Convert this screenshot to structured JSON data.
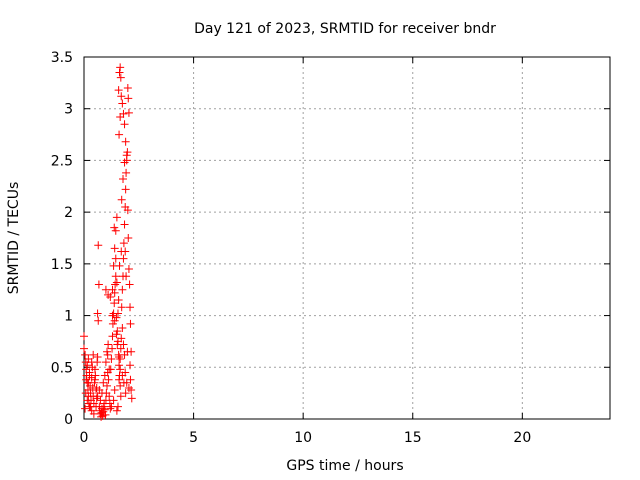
{
  "chart_data": {
    "type": "scatter",
    "title": "Day 121 of 2023, SRMTID for receiver bndr",
    "xlabel": "GPS time / hours",
    "ylabel": "SRMTID / TECUs",
    "xlim": [
      0,
      24
    ],
    "ylim": [
      0,
      3.5
    ],
    "xticks": [
      0,
      5,
      10,
      15,
      20
    ],
    "xtick_labels": [
      "0",
      "5",
      "10",
      "15",
      "20"
    ],
    "yticks": [
      0,
      0.5,
      1,
      1.5,
      2,
      2.5,
      3,
      3.5
    ],
    "ytick_labels": [
      "0",
      "0.5",
      "1",
      "1.5",
      "2",
      "2.5",
      "3",
      "3.5"
    ],
    "grid": true,
    "marker": "+",
    "series": [
      {
        "name": "SRMTID",
        "color": "#ff0000",
        "points": [
          [
            0.0,
            0.8
          ],
          [
            0.0,
            0.68
          ],
          [
            0.05,
            0.62
          ],
          [
            0.08,
            0.55
          ],
          [
            0.1,
            0.48
          ],
          [
            0.12,
            0.42
          ],
          [
            0.15,
            0.35
          ],
          [
            0.18,
            0.28
          ],
          [
            0.2,
            0.22
          ],
          [
            0.22,
            0.15
          ],
          [
            0.25,
            0.12
          ],
          [
            0.05,
            0.1
          ],
          [
            0.1,
            0.38
          ],
          [
            0.15,
            0.52
          ],
          [
            0.2,
            0.58
          ],
          [
            0.25,
            0.45
          ],
          [
            0.28,
            0.32
          ],
          [
            0.3,
            0.25
          ],
          [
            0.32,
            0.18
          ],
          [
            0.35,
            0.4
          ],
          [
            0.38,
            0.5
          ],
          [
            0.4,
            0.3
          ],
          [
            0.42,
            0.22
          ],
          [
            0.45,
            0.15
          ],
          [
            0.48,
            0.35
          ],
          [
            0.5,
            0.48
          ],
          [
            0.52,
            0.42
          ],
          [
            0.55,
            0.28
          ],
          [
            0.58,
            0.2
          ],
          [
            0.6,
            0.55
          ],
          [
            0.62,
            0.6
          ],
          [
            0.65,
            0.95
          ],
          [
            0.62,
            1.02
          ],
          [
            0.68,
            1.3
          ],
          [
            0.65,
            1.68
          ],
          [
            0.7,
            0.12
          ],
          [
            0.72,
            0.08
          ],
          [
            0.75,
            0.05
          ],
          [
            0.78,
            0.02
          ],
          [
            0.8,
            0.06
          ],
          [
            0.82,
            0.1
          ],
          [
            0.85,
            0.03
          ],
          [
            0.88,
            0.07
          ],
          [
            0.9,
            0.12
          ],
          [
            0.92,
            0.15
          ],
          [
            0.95,
            0.09
          ],
          [
            0.98,
            0.04
          ],
          [
            1.0,
            0.18
          ],
          [
            1.02,
            0.25
          ],
          [
            1.05,
            0.32
          ],
          [
            1.08,
            0.45
          ],
          [
            1.0,
            0.55
          ],
          [
            1.05,
            0.65
          ],
          [
            1.1,
            0.72
          ],
          [
            1.12,
            0.38
          ],
          [
            1.15,
            0.22
          ],
          [
            1.18,
            0.15
          ],
          [
            1.2,
            0.1
          ],
          [
            1.22,
            0.48
          ],
          [
            1.25,
            0.58
          ],
          [
            1.28,
            0.68
          ],
          [
            1.3,
            0.8
          ],
          [
            1.32,
            0.92
          ],
          [
            1.35,
            1.02
          ],
          [
            1.38,
            1.12
          ],
          [
            1.4,
            1.22
          ],
          [
            1.42,
            1.3
          ],
          [
            1.45,
            1.38
          ],
          [
            1.3,
            1.25
          ],
          [
            1.35,
            1.48
          ],
          [
            1.4,
            1.65
          ],
          [
            1.45,
            1.82
          ],
          [
            1.38,
            1.85
          ],
          [
            1.5,
            1.95
          ],
          [
            1.48,
            0.98
          ],
          [
            1.52,
            0.85
          ],
          [
            1.55,
            0.75
          ],
          [
            1.58,
            0.62
          ],
          [
            1.6,
            0.52
          ],
          [
            1.62,
            0.42
          ],
          [
            1.65,
            0.32
          ],
          [
            1.68,
            0.22
          ],
          [
            1.5,
            0.08
          ],
          [
            1.55,
            0.12
          ],
          [
            1.6,
            0.38
          ],
          [
            1.65,
            0.58
          ],
          [
            1.68,
            0.68
          ],
          [
            1.7,
            0.78
          ],
          [
            1.72,
            1.08
          ],
          [
            1.75,
            1.25
          ],
          [
            1.78,
            1.38
          ],
          [
            1.8,
            1.55
          ],
          [
            1.82,
            1.7
          ],
          [
            1.85,
            1.88
          ],
          [
            1.88,
            2.05
          ],
          [
            1.9,
            2.22
          ],
          [
            1.92,
            2.38
          ],
          [
            1.95,
            2.55
          ],
          [
            1.6,
            2.75
          ],
          [
            1.65,
            2.92
          ],
          [
            1.7,
            3.12
          ],
          [
            1.62,
            3.35
          ],
          [
            1.65,
            3.4
          ],
          [
            1.68,
            3.3
          ],
          [
            1.58,
            3.18
          ],
          [
            1.75,
            3.05
          ],
          [
            1.8,
            2.95
          ],
          [
            1.85,
            2.85
          ],
          [
            1.9,
            2.68
          ],
          [
            1.95,
            2.5
          ],
          [
            2.0,
            3.2
          ],
          [
            2.02,
            3.1
          ],
          [
            2.05,
            2.96
          ],
          [
            1.98,
            2.58
          ],
          [
            2.0,
            2.02
          ],
          [
            2.02,
            1.75
          ],
          [
            2.05,
            1.45
          ],
          [
            2.08,
            1.3
          ],
          [
            2.1,
            1.08
          ],
          [
            2.12,
            0.92
          ],
          [
            2.15,
            0.65
          ],
          [
            2.1,
            0.52
          ],
          [
            2.12,
            0.38
          ],
          [
            2.15,
            0.28
          ],
          [
            2.18,
            0.2
          ],
          [
            1.9,
            0.25
          ],
          [
            1.95,
            0.35
          ],
          [
            1.88,
            0.45
          ],
          [
            1.85,
            0.62
          ],
          [
            1.8,
            0.72
          ],
          [
            1.55,
            1.02
          ],
          [
            1.58,
            1.15
          ],
          [
            1.45,
            1.55
          ],
          [
            1.72,
            2.12
          ],
          [
            1.78,
            2.32
          ],
          [
            1.85,
            2.48
          ],
          [
            1.7,
            1.62
          ],
          [
            1.92,
            1.38
          ],
          [
            1.75,
            0.88
          ],
          [
            1.4,
            0.28
          ],
          [
            1.35,
            0.18
          ],
          [
            1.25,
            0.12
          ],
          [
            1.15,
            0.48
          ],
          [
            1.08,
            0.62
          ],
          [
            0.95,
            0.42
          ],
          [
            0.88,
            0.35
          ],
          [
            0.82,
            0.25
          ],
          [
            0.75,
            0.18
          ],
          [
            0.7,
            0.28
          ],
          [
            0.55,
            0.12
          ],
          [
            0.45,
            0.05
          ],
          [
            0.35,
            0.08
          ],
          [
            0.3,
            0.12
          ],
          [
            0.15,
            0.18
          ],
          [
            0.08,
            0.25
          ],
          [
            0.2,
            0.35
          ],
          [
            0.25,
            0.42
          ],
          [
            0.35,
            0.55
          ],
          [
            0.42,
            0.62
          ],
          [
            0.5,
            0.38
          ],
          [
            0.58,
            0.3
          ],
          [
            0.62,
            0.22
          ],
          [
            1.0,
            1.25
          ],
          [
            1.1,
            1.2
          ],
          [
            1.2,
            1.18
          ],
          [
            1.3,
            1.0
          ],
          [
            1.4,
            0.95
          ],
          [
            1.48,
            0.82
          ],
          [
            1.52,
            0.72
          ],
          [
            1.6,
            0.6
          ],
          [
            1.65,
            0.48
          ],
          [
            1.75,
            0.42
          ],
          [
            1.82,
            0.35
          ],
          [
            1.98,
            0.65
          ],
          [
            2.05,
            0.3
          ],
          [
            1.5,
            1.32
          ],
          [
            1.62,
            1.48
          ],
          [
            1.88,
            1.62
          ]
        ]
      }
    ]
  }
}
